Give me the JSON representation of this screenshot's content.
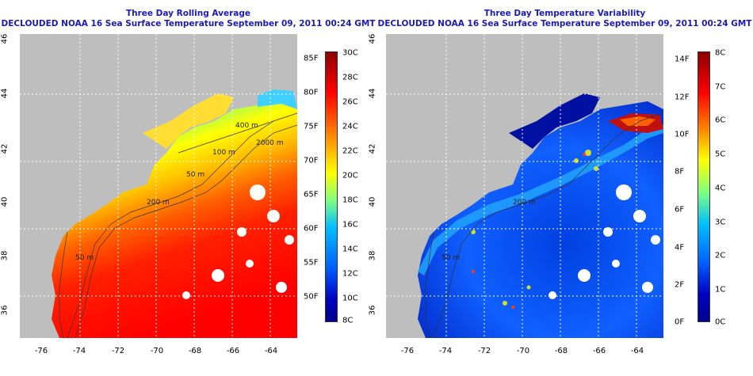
{
  "left_panel": {
    "title_line1": "Three Day Rolling Average",
    "title_line2": "DECLOUDED NOAA 16 Sea Surface Temperature September 09, 2011 00:24 GMT",
    "colorbar_f": [
      "85F",
      "80F",
      "75F",
      "70F",
      "65F",
      "60F",
      "55F",
      "50F"
    ],
    "colorbar_c": [
      "30C",
      "28C",
      "26C",
      "24C",
      "22C",
      "20C",
      "18C",
      "16C",
      "14C",
      "12C",
      "10C",
      "8C"
    ],
    "contour_labels": [
      "400 m",
      "100 m",
      "2000 m",
      "50 m",
      "200 m",
      "50 m"
    ],
    "palette": [
      "#ff0000",
      "#ff4000",
      "#ff8000",
      "#ffbf00",
      "#ffff00",
      "#80ff80",
      "#00bfff",
      "#0060ff",
      "#0000c0"
    ]
  },
  "right_panel": {
    "title_line1": "Three Day Temperature Variability",
    "title_line2": "DECLOUDED NOAA 16 Sea Surface Temperature September 09, 2011 00:24 GMT",
    "colorbar_f": [
      "14F",
      "12F",
      "10F",
      "8F",
      "6F",
      "4F",
      "2F",
      "0F"
    ],
    "colorbar_c": [
      "8C",
      "7C",
      "6C",
      "5C",
      "4C",
      "3C",
      "2C",
      "1C",
      "0C"
    ],
    "contour_labels": [
      "200 m",
      "50 m"
    ],
    "palette": [
      "#8b0000",
      "#ff0000",
      "#ff8000",
      "#ffff00",
      "#80ff80",
      "#00bfff",
      "#0060ff",
      "#0000c0",
      "#00008b"
    ]
  },
  "axes": {
    "x_ticks": [
      "-76",
      "-74",
      "-72",
      "-70",
      "-68",
      "-66",
      "-64"
    ],
    "y_ticks": [
      "46",
      "44",
      "42",
      "40",
      "38",
      "36"
    ]
  },
  "colors": {
    "title": "#1b1bb5",
    "land": "#bebebe",
    "gridline": "#ffffff"
  }
}
